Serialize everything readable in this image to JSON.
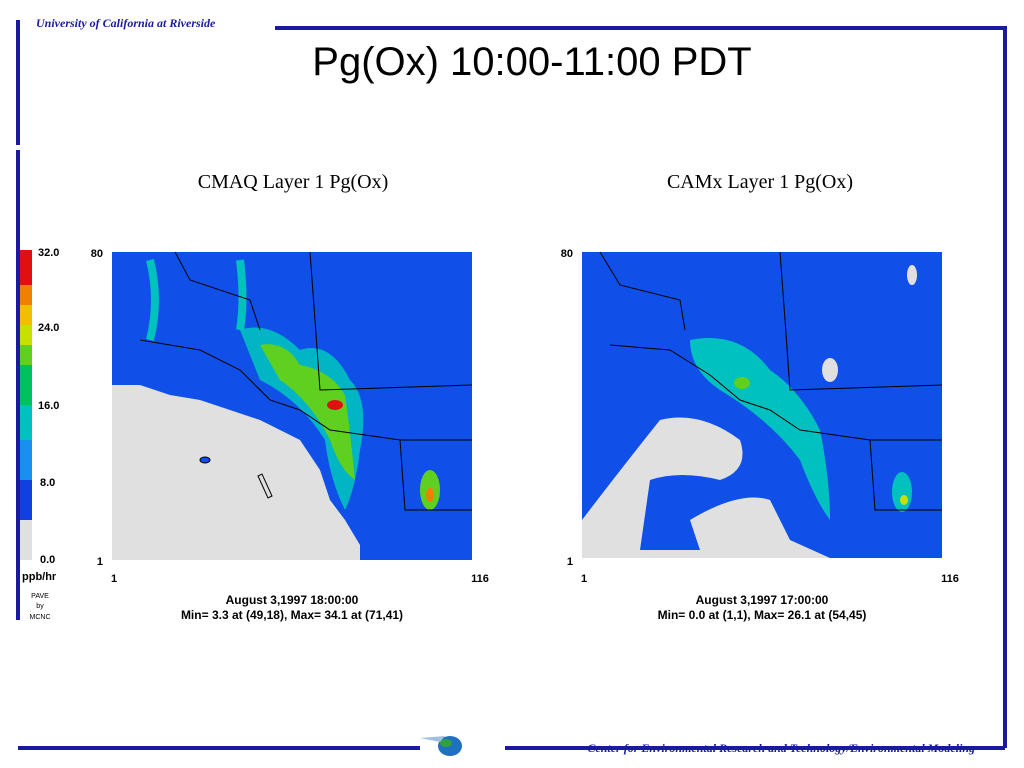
{
  "header": {
    "institution": "University of California at Riverside",
    "title": "Pg(Ox) 10:00-11:00 PDT"
  },
  "legend": {
    "labels": [
      "32.0",
      "24.0",
      "16.0",
      "8.0",
      "0.0"
    ],
    "unit": "ppb/hr",
    "credit": [
      "PAVE",
      "by",
      "MCNC"
    ]
  },
  "panels": [
    {
      "title": "CMAQ  Layer 1  Pg(Ox)",
      "y_top": "80",
      "y_bottom": "1",
      "x_left": "1",
      "x_right": "116",
      "date": "August 3,1997 18:00:00",
      "stats": "Min=  3.3 at (49,18), Max= 34.1 at (71,41)"
    },
    {
      "title": "CAMx  Layer 1  Pg(Ox)",
      "y_top": "80",
      "y_bottom": "1",
      "x_left": "1",
      "x_right": "116",
      "date": "August 3,1997 17:00:00",
      "stats": "Min=  0.0 at (1,1), Max= 26.1 at (54,45)"
    }
  ],
  "footer": {
    "text": "Center for Environmental Research and Technology/Environmental Modeling"
  }
}
